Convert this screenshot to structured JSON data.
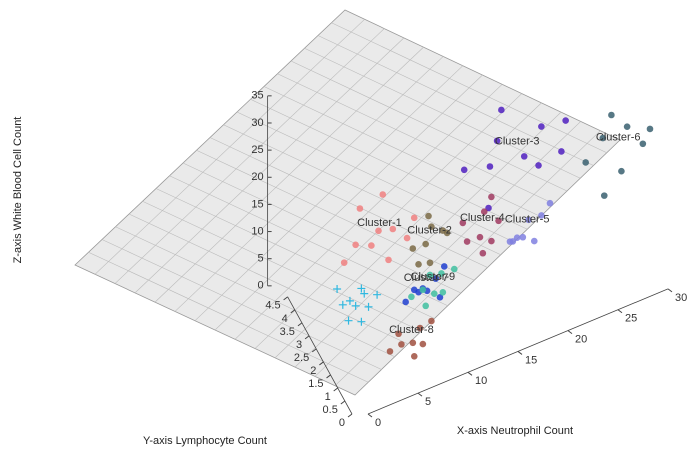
{
  "chart_data": {
    "type": "scatter3d",
    "x_label": "X-axis Neutrophil Count",
    "y_label": "Y-axis Lymphocyte Count",
    "z_label": "Z-axis White Blood Cell Count",
    "xlim": [
      0,
      30
    ],
    "xticks": [
      0,
      5,
      10,
      15,
      20,
      25,
      30
    ],
    "ylim": [
      0,
      4.5
    ],
    "yticks": [
      0,
      0.5,
      1,
      1.5,
      2,
      2.5,
      3,
      3.5,
      4,
      4.5
    ],
    "zlim": [
      0,
      35
    ],
    "zticks": [
      0,
      5,
      10,
      15,
      20,
      25,
      30,
      35
    ],
    "series": [
      {
        "name": "Cluster-1",
        "color": "#f08080",
        "marker": "o",
        "x": [
          5,
          6,
          7,
          8,
          9,
          10,
          6,
          8,
          4,
          7
        ],
        "y": [
          3.8,
          3.4,
          3.6,
          3.3,
          3.0,
          3.2,
          4.2,
          4.0,
          3.9,
          2.9
        ],
        "z": [
          8,
          9,
          10,
          11,
          10,
          12,
          12,
          14,
          5,
          8
        ]
      },
      {
        "name": "Cluster-2",
        "color": "#7a6a45",
        "marker": "o",
        "x": [
          9,
          10,
          11,
          12,
          10,
          11,
          9,
          12
        ],
        "y": [
          2.6,
          2.4,
          2.7,
          2.3,
          2.1,
          2.9,
          2.2,
          2.6
        ],
        "z": [
          10,
          11,
          12,
          12,
          9,
          13,
          9,
          11
        ]
      },
      {
        "name": "Cluster-3",
        "color": "#5020c0",
        "marker": "o",
        "x": [
          15,
          17,
          18,
          20,
          21,
          22,
          23,
          24,
          19,
          16
        ],
        "y": [
          3.2,
          2.8,
          3.0,
          2.5,
          2.2,
          2.7,
          2.0,
          2.4,
          3.4,
          2.2
        ],
        "z": [
          17,
          18,
          21,
          19,
          18,
          22,
          20,
          23,
          24,
          14
        ]
      },
      {
        "name": "Cluster-4",
        "color": "#a03a60",
        "marker": "o",
        "x": [
          13,
          14,
          15,
          16,
          14,
          15,
          16,
          13
        ],
        "y": [
          1.6,
          1.4,
          1.8,
          1.5,
          1.2,
          1.3,
          2.0,
          1.9
        ],
        "z": [
          13,
          14,
          16,
          15,
          12,
          13,
          17,
          15
        ]
      },
      {
        "name": "Cluster-5",
        "color": "#8080e0",
        "marker": "o",
        "x": [
          16,
          17,
          18,
          19,
          17,
          18,
          20,
          16
        ],
        "y": [
          0.7,
          0.5,
          0.8,
          0.6,
          0.9,
          0.4,
          0.7,
          0.5
        ],
        "z": [
          15,
          16,
          17,
          18,
          14,
          15,
          19,
          16
        ]
      },
      {
        "name": "Cluster-6",
        "color": "#3a6070",
        "marker": "o",
        "x": [
          24,
          26,
          27,
          28,
          29,
          30,
          25,
          27
        ],
        "y": [
          1.0,
          1.2,
          0.6,
          0.9,
          0.5,
          0.7,
          0.4,
          1.3
        ],
        "z": [
          22,
          24,
          20,
          26,
          24,
          25,
          18,
          27
        ]
      },
      {
        "name": "Cluster-7",
        "color": "#2040d0",
        "marker": "o",
        "x": [
          8,
          9,
          10,
          9,
          8,
          10,
          11,
          7
        ],
        "y": [
          1.8,
          1.6,
          1.7,
          1.9,
          1.5,
          1.4,
          1.8,
          1.7
        ],
        "z": [
          7,
          7,
          8,
          6,
          8,
          6,
          9,
          6
        ]
      },
      {
        "name": "Cluster-8",
        "color": "#a05040",
        "marker": "o",
        "x": [
          5,
          6,
          7,
          6,
          5,
          7,
          8,
          4
        ],
        "y": [
          0.6,
          0.5,
          0.7,
          0.4,
          0.8,
          0.5,
          0.6,
          0.7
        ],
        "z": [
          5,
          5,
          6,
          3,
          6,
          4,
          7,
          4
        ]
      },
      {
        "name": "Cluster-9",
        "color": "#40c0a0",
        "marker": "o",
        "x": [
          7,
          8,
          9,
          7,
          8,
          9,
          10,
          6
        ],
        "y": [
          0.5,
          0.4,
          0.6,
          0.3,
          0.7,
          0.5,
          0.4,
          0.6
        ],
        "z": [
          14,
          13,
          15,
          12,
          15,
          12,
          16,
          13
        ]
      },
      {
        "color": "#30b8e0",
        "marker": "+",
        "x": [
          2,
          3,
          4,
          3,
          2,
          4,
          5,
          3,
          2,
          4
        ],
        "y": [
          2.6,
          2.4,
          2.5,
          2.8,
          2.2,
          2.2,
          2.3,
          2.0,
          3.0,
          2.7
        ],
        "z": [
          5,
          5,
          6,
          4,
          4,
          5,
          6,
          4,
          6,
          6
        ]
      }
    ]
  }
}
